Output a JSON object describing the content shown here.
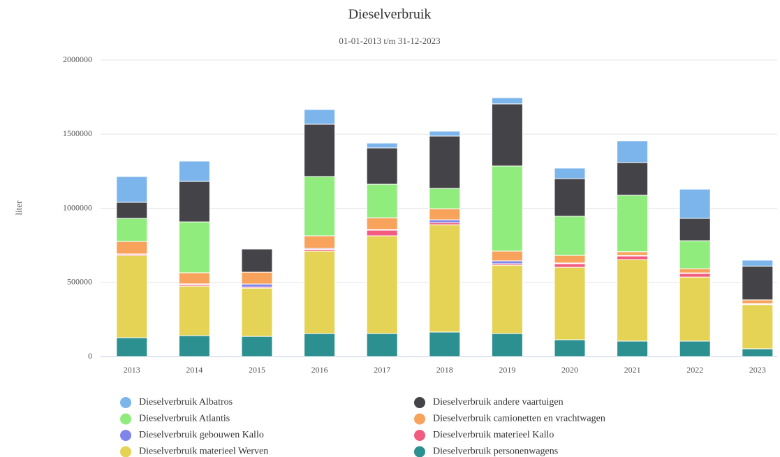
{
  "chart_data": {
    "type": "stacked_bar",
    "title": "Dieselverbruik",
    "subtitle": "01-01-2013 t/m 31-12-2023",
    "y_label": "liter",
    "categories": [
      "2013",
      "2014",
      "2015",
      "2016",
      "2017",
      "2018",
      "2019",
      "2020",
      "2021",
      "2022",
      "2023"
    ],
    "series": [
      {
        "name": "Dieselverbruik personenwagens",
        "color": "#2b908f",
        "values": [
          127000,
          141000,
          136000,
          155000,
          155000,
          165000,
          155000,
          113000,
          104000,
          104000,
          52000
        ]
      },
      {
        "name": "Dieselverbruik materieel Werven",
        "color": "#e4d354",
        "values": [
          555000,
          334000,
          325000,
          556000,
          659000,
          724000,
          461000,
          489000,
          550000,
          432000,
          298000
        ]
      },
      {
        "name": "Dieselverbruik materieel Kallo",
        "color": "#f15c80",
        "values": [
          8000,
          10000,
          8000,
          12000,
          38000,
          14000,
          10000,
          24000,
          24000,
          24000,
          5000
        ]
      },
      {
        "name": "Dieselverbruik gebouwen Kallo",
        "color": "#8085e9",
        "values": [
          2000,
          5000,
          20000,
          6000,
          5000,
          19000,
          19000,
          5000,
          4000,
          4000,
          2000
        ]
      },
      {
        "name": "Dieselverbruik camionetten en vrachtwagen",
        "color": "#f7a35c",
        "values": [
          84000,
          75000,
          80000,
          85000,
          79000,
          75000,
          66000,
          51000,
          25000,
          29000,
          25000
        ]
      },
      {
        "name": "Dieselverbruik Atlantis",
        "color": "#90ed7d",
        "values": [
          156000,
          343000,
          0,
          400000,
          226000,
          137000,
          574000,
          264000,
          381000,
          188000,
          0
        ]
      },
      {
        "name": "Dieselverbruik andere vaartuigen",
        "color": "#434348",
        "values": [
          108000,
          273000,
          156000,
          353000,
          245000,
          353000,
          419000,
          254000,
          221000,
          151000,
          228000
        ]
      },
      {
        "name": "Dieselverbruik Albatros",
        "color": "#7cb5ec",
        "values": [
          174000,
          137000,
          0,
          99000,
          33000,
          33000,
          42000,
          71000,
          146000,
          197000,
          40000
        ]
      }
    ],
    "ylim": [
      0,
      2000000
    ],
    "yticks": [
      0,
      500000,
      1000000,
      1500000,
      2000000
    ],
    "grid": true
  }
}
